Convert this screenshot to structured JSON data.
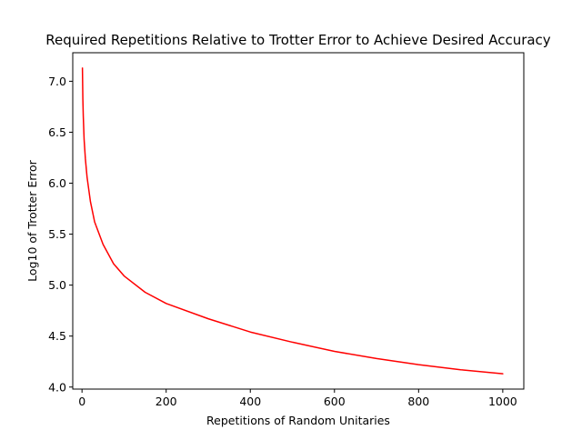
{
  "chart_data": {
    "type": "line",
    "title": "Required Repetitions Relative to Trotter Error to Achieve Desired Accuracy",
    "xlabel": "Repetitions of Random Unitaries",
    "ylabel": "Log10 of Trotter Error",
    "xlim": [
      -22,
      1050
    ],
    "ylim": [
      3.98,
      7.28
    ],
    "xticks": [
      0,
      200,
      400,
      600,
      800,
      1000
    ],
    "yticks": [
      4.0,
      4.5,
      5.0,
      5.5,
      6.0,
      6.5,
      7.0
    ],
    "xtick_labels": [
      "0",
      "200",
      "400",
      "600",
      "800",
      "1000"
    ],
    "ytick_labels": [
      "4.0",
      "4.5",
      "5.0",
      "5.5",
      "6.0",
      "6.5",
      "7.0"
    ],
    "grid": false,
    "series": [
      {
        "color": "#ff0000",
        "x": [
          1,
          2,
          3,
          5,
          8,
          12,
          20,
          30,
          50,
          75,
          100,
          150,
          200,
          300,
          400,
          500,
          600,
          700,
          800,
          900,
          1000
        ],
        "y": [
          7.13,
          6.83,
          6.66,
          6.43,
          6.24,
          6.06,
          5.82,
          5.62,
          5.4,
          5.21,
          5.09,
          4.93,
          4.82,
          4.67,
          4.54,
          4.44,
          4.35,
          4.28,
          4.22,
          4.17,
          4.13
        ]
      }
    ]
  }
}
